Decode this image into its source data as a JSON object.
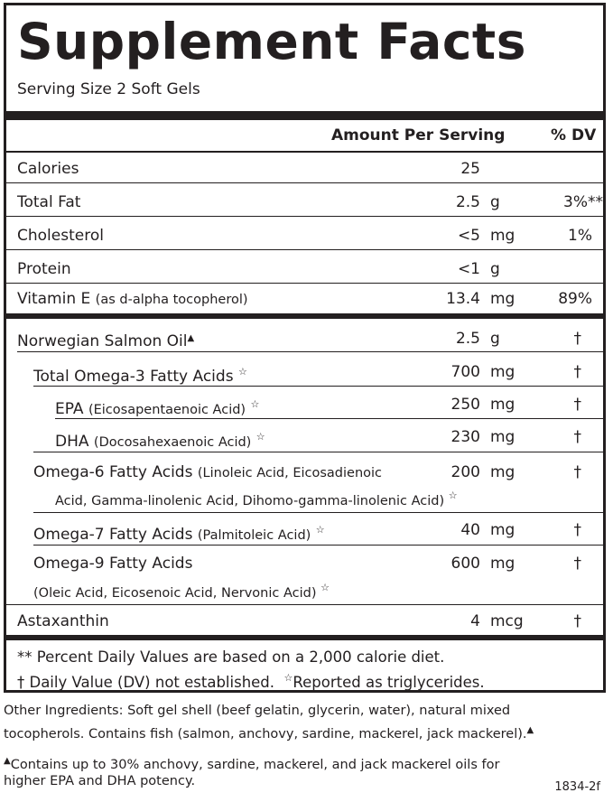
{
  "title": "Supplement Facts",
  "serving_size": "Serving Size 2 Soft Gels",
  "header": {
    "amount": "Amount Per Serving",
    "dv": "% DV"
  },
  "section1": [
    {
      "name": "Calories",
      "note": "",
      "amount": "25",
      "unit": "",
      "dv": ""
    },
    {
      "name": "Total Fat",
      "note": "",
      "amount": "2.5",
      "unit": "g",
      "dv": "3%**"
    },
    {
      "name": "Cholesterol",
      "note": "",
      "amount": "<5",
      "unit": "mg",
      "dv": "1%"
    },
    {
      "name": "Protein",
      "note": "",
      "amount": "<1",
      "unit": "g",
      "dv": ""
    },
    {
      "name": "Vitamin E",
      "note": "(as d-alpha tocopherol)",
      "amount": "13.4",
      "unit": "mg",
      "dv": "89%"
    }
  ],
  "section2": [
    {
      "name": "Norwegian Salmon Oil",
      "note": "",
      "amount": "2.5",
      "unit": "g",
      "dv": "†",
      "symbol": "▲"
    },
    {
      "name": "Total Omega-3 Fatty Acids",
      "note": "",
      "amount": "700",
      "unit": "mg",
      "dv": "†",
      "symbol": "☆"
    },
    {
      "name": "EPA",
      "note": "(Eicosapentaenoic Acid)",
      "amount": "250",
      "unit": "mg",
      "dv": "†",
      "symbol": "☆"
    },
    {
      "name": "DHA",
      "note": "(Docosahexaenoic Acid)",
      "amount": "230",
      "unit": "mg",
      "dv": "†",
      "symbol": "☆"
    },
    {
      "name": "Omega-6 Fatty Acids",
      "note": "(Linoleic Acid, Eicosadienoic",
      "note2": "Acid, Gamma-linolenic Acid, Dihomo-gamma-linolenic Acid)",
      "amount": "200",
      "unit": "mg",
      "dv": "†",
      "symbol": "☆"
    },
    {
      "name": "Omega-7 Fatty Acids",
      "note": "(Palmitoleic Acid)",
      "amount": "40",
      "unit": "mg",
      "dv": "†",
      "symbol": "☆"
    },
    {
      "name": "Omega-9 Fatty Acids",
      "note": "",
      "note2": "(Oleic Acid, Eicosenoic Acid, Nervonic Acid)",
      "amount": "600",
      "unit": "mg",
      "dv": "†",
      "symbol": "☆"
    },
    {
      "name": "Astaxanthin",
      "note": "",
      "amount": "4",
      "unit": "mcg",
      "dv": "†"
    }
  ],
  "footnotes": {
    "line1": "** Percent Daily Values are based on a 2,000 calorie diet.",
    "line2a": "† Daily Value (DV) not established.",
    "line2_symbol": "☆",
    "line2b": "Reported as triglycerides."
  },
  "other_ingredients": {
    "line1": "Other Ingredients: Soft gel shell (beef gelatin, glycerin, water), natural mixed",
    "line2": "tocopherols. Contains fish (salmon, anchovy, sardine, mackerel, jack mackerel).",
    "line2_symbol": "▲"
  },
  "note": {
    "symbol": "▲",
    "line1": "Contains up to 30% anchovy, sardine, mackerel, and jack mackerel oils for",
    "line2": "higher EPA and DHA potency."
  },
  "code": "1834-2f"
}
